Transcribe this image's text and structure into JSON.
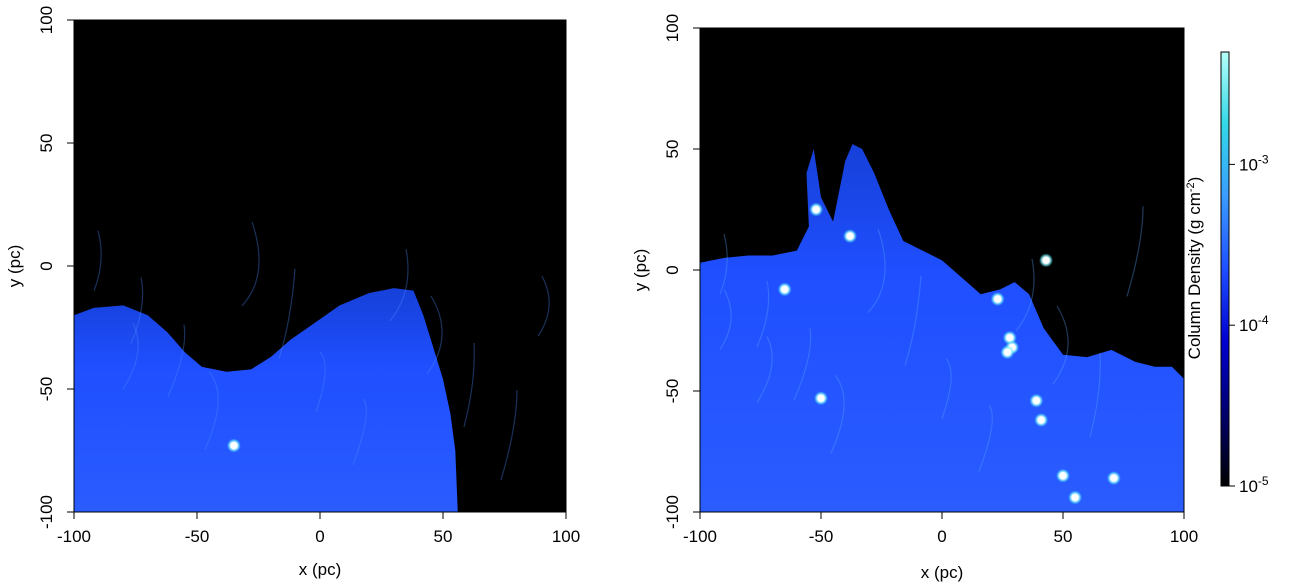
{
  "chart_data": [
    {
      "type": "heatmap",
      "panel": "left",
      "xlabel": "x (pc)",
      "ylabel": "y (pc)",
      "xlim": [
        -100,
        100
      ],
      "ylim": [
        -100,
        100
      ],
      "x_ticks": [
        -100,
        -50,
        0,
        50,
        100
      ],
      "y_ticks": [
        -100,
        -50,
        0,
        50,
        100
      ],
      "x_tick_labels": [
        "-100",
        "-50",
        "0",
        "50",
        "100"
      ],
      "y_tick_labels": [
        "-100",
        "-50",
        "0",
        "50",
        "100"
      ],
      "grid": false,
      "background_color": "#000000",
      "gas_color": "#1f4fff",
      "gas_boundary": [
        [
          -100,
          -20
        ],
        [
          -92,
          -17
        ],
        [
          -80,
          -16
        ],
        [
          -70,
          -20
        ],
        [
          -62,
          -27
        ],
        [
          -55,
          -35
        ],
        [
          -48,
          -41
        ],
        [
          -38,
          -43
        ],
        [
          -28,
          -42
        ],
        [
          -20,
          -37
        ],
        [
          -12,
          -30
        ],
        [
          -2,
          -23
        ],
        [
          8,
          -16
        ],
        [
          20,
          -11
        ],
        [
          30,
          -9
        ],
        [
          38,
          -10
        ],
        [
          42,
          -20
        ],
        [
          46,
          -33
        ],
        [
          50,
          -46
        ],
        [
          53,
          -60
        ],
        [
          55,
          -75
        ],
        [
          56,
          -100
        ]
      ],
      "stars": [
        {
          "x": -35,
          "y": -73
        }
      ]
    },
    {
      "type": "heatmap",
      "panel": "right",
      "xlabel": "x (pc)",
      "ylabel": "y (pc)",
      "xlim": [
        -100,
        100
      ],
      "ylim": [
        -100,
        100
      ],
      "x_ticks": [
        -100,
        -50,
        0,
        50,
        100
      ],
      "y_ticks": [
        -100,
        -50,
        0,
        50,
        100
      ],
      "x_tick_labels": [
        "-100",
        "-50",
        "0",
        "50",
        "100"
      ],
      "y_tick_labels": [
        "-100",
        "-50",
        "0",
        "50",
        "100"
      ],
      "grid": false,
      "background_color": "#000000",
      "gas_color": "#1f4fff",
      "gas_boundary": [
        [
          -100,
          3
        ],
        [
          -90,
          5
        ],
        [
          -80,
          6
        ],
        [
          -70,
          6
        ],
        [
          -60,
          8
        ],
        [
          -55,
          18
        ],
        [
          -56,
          40
        ],
        [
          -53,
          50
        ],
        [
          -50,
          30
        ],
        [
          -45,
          20
        ],
        [
          -40,
          45
        ],
        [
          -37,
          52
        ],
        [
          -33,
          50
        ],
        [
          -28,
          40
        ],
        [
          -22,
          25
        ],
        [
          -16,
          12
        ],
        [
          -8,
          8
        ],
        [
          0,
          4
        ],
        [
          8,
          -3
        ],
        [
          16,
          -10
        ],
        [
          24,
          -8
        ],
        [
          30,
          -5
        ],
        [
          36,
          -10
        ],
        [
          42,
          -24
        ],
        [
          50,
          -35
        ],
        [
          60,
          -36
        ],
        [
          70,
          -33
        ],
        [
          80,
          -38
        ],
        [
          88,
          -40
        ],
        [
          95,
          -40
        ],
        [
          100,
          -45
        ],
        [
          100,
          -100
        ]
      ],
      "stars": [
        {
          "x": -52,
          "y": 25
        },
        {
          "x": -38,
          "y": 14
        },
        {
          "x": 43,
          "y": 4
        },
        {
          "x": -65,
          "y": -8
        },
        {
          "x": 23,
          "y": -12
        },
        {
          "x": 28,
          "y": -28
        },
        {
          "x": 29,
          "y": -32
        },
        {
          "x": 27,
          "y": -34
        },
        {
          "x": -50,
          "y": -53
        },
        {
          "x": 39,
          "y": -54
        },
        {
          "x": 41,
          "y": -62
        },
        {
          "x": 50,
          "y": -85
        },
        {
          "x": 71,
          "y": -86
        },
        {
          "x": 55,
          "y": -94
        }
      ],
      "colorbar": {
        "label": "Column Density (g cm",
        "label_sup": "-2",
        "label_end": ")",
        "scale": "log",
        "range": [
          1e-05,
          0.005
        ],
        "ticks": [
          1e-05,
          0.0001,
          0.001
        ],
        "tick_labels": [
          {
            "base": "10",
            "exp": "-5"
          },
          {
            "base": "10",
            "exp": "-4"
          },
          {
            "base": "10",
            "exp": "-3"
          }
        ],
        "colors": [
          "#000000",
          "#00006e",
          "#0000d0",
          "#1f4fff",
          "#3a9cff",
          "#33d8e8",
          "#b4fff8"
        ]
      }
    }
  ]
}
